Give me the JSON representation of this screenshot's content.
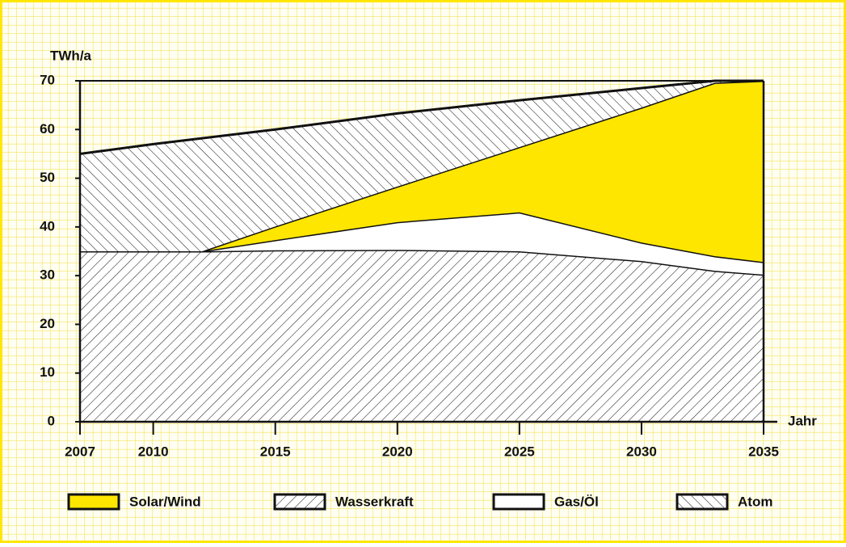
{
  "chart_data": {
    "type": "stacked_area",
    "y_label": "TWh/a",
    "x_label": "Jahr",
    "x": [
      2007,
      2010,
      2012,
      2015,
      2020,
      2025,
      2030,
      2033,
      2035
    ],
    "series": [
      {
        "name": "Solar/Wind",
        "color": "#ffe600",
        "values": [
          0,
          0,
          0,
          2.8,
          7.3,
          13.4,
          27.7,
          35.6,
          37.2
        ]
      },
      {
        "name": "Wasserkraft",
        "color": "#ffffff",
        "hatch": "/",
        "values": [
          35,
          35,
          35,
          35.2,
          35.3,
          35,
          33,
          31,
          30.2
        ]
      },
      {
        "name": "Gas/Öl",
        "color": "#ffffff",
        "values": [
          0,
          0,
          0,
          2.1,
          5.7,
          8,
          3.8,
          3,
          2.6
        ]
      },
      {
        "name": "Atom",
        "color": "#ffffff",
        "hatch": "\\",
        "values": [
          20,
          22,
          23.2,
          19.9,
          15,
          9.6,
          4,
          0.4,
          0
        ]
      }
    ],
    "xlim": [
      2007,
      2035
    ],
    "xticks": [
      2007,
      2010,
      2015,
      2020,
      2025,
      2030,
      2035
    ],
    "ylim": [
      0,
      70
    ],
    "yticks": [
      0,
      10,
      20,
      30,
      40,
      50,
      60,
      70
    ]
  }
}
